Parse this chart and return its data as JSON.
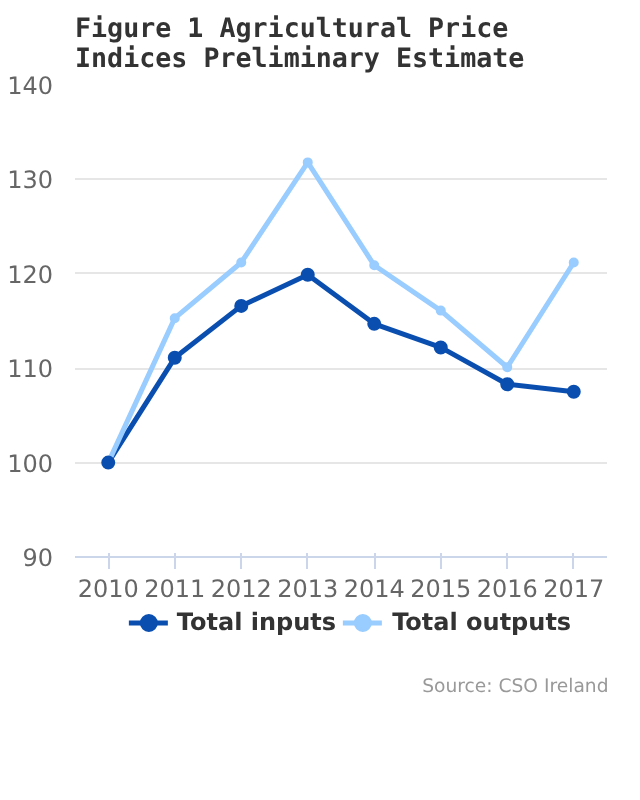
{
  "chart_data": {
    "type": "line",
    "title": "Figure 1 Agricultural Price Indices Preliminary Estimate",
    "categories": [
      "2010",
      "2011",
      "2012",
      "2013",
      "2014",
      "2015",
      "2016",
      "2017"
    ],
    "series": [
      {
        "name": "Total inputs",
        "color": "#0a4fb0",
        "values": [
          100,
          111.1,
          116.6,
          119.9,
          114.7,
          112.2,
          108.3,
          107.5
        ]
      },
      {
        "name": "Total outputs",
        "color": "#99ccff",
        "values": [
          100,
          115.3,
          121.2,
          131.8,
          120.9,
          116.1,
          110.1,
          121.2
        ]
      }
    ],
    "ylim": [
      90,
      140
    ],
    "yticks": [
      90,
      100,
      110,
      120,
      130,
      140
    ],
    "grid": "y",
    "legend": "bottom",
    "marker": "circle",
    "line_style": "solid",
    "annotations": [
      "Source: CSO Ireland"
    ]
  }
}
